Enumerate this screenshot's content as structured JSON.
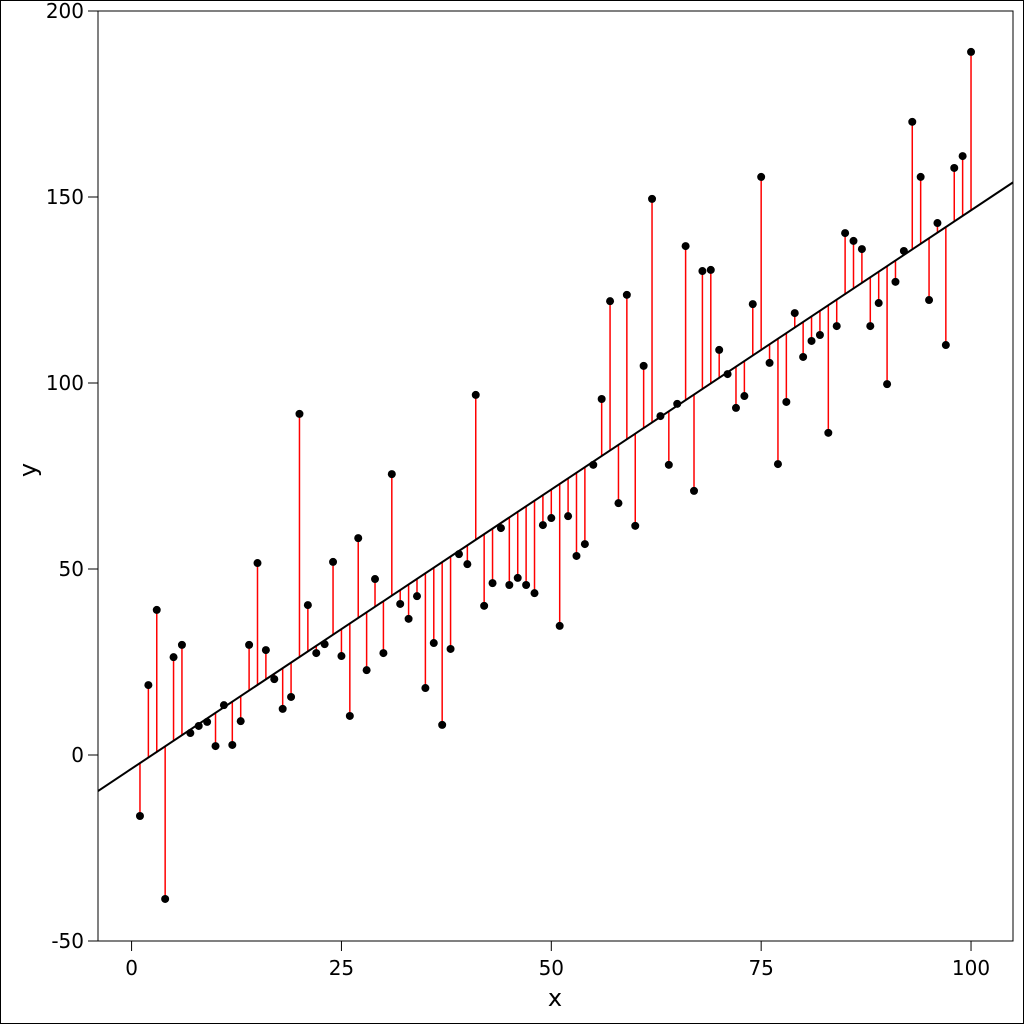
{
  "chart_data": {
    "type": "scatter",
    "x_label": "x",
    "y_label": "y",
    "x": [
      1,
      2,
      3,
      4,
      5,
      6,
      7,
      8,
      9,
      10,
      11,
      12,
      13,
      14,
      15,
      16,
      17,
      18,
      19,
      20,
      21,
      22,
      23,
      24,
      25,
      26,
      27,
      28,
      29,
      30,
      31,
      32,
      33,
      34,
      35,
      36,
      37,
      38,
      39,
      40,
      41,
      42,
      43,
      44,
      45,
      46,
      47,
      48,
      49,
      50,
      51,
      52,
      53,
      54,
      55,
      56,
      57,
      58,
      59,
      60,
      61,
      62,
      63,
      64,
      65,
      66,
      67,
      68,
      69,
      70,
      71,
      72,
      73,
      74,
      75,
      76,
      77,
      78,
      79,
      80,
      81,
      82,
      83,
      84,
      85,
      86,
      87,
      88,
      89,
      90,
      91,
      92,
      93,
      94,
      95,
      96,
      97,
      98,
      99,
      100
    ],
    "values": [
      -16.4,
      18.8,
      39.0,
      -38.7,
      26.3,
      29.6,
      5.9,
      7.8,
      8.9,
      2.4,
      13.4,
      2.7,
      9.1,
      29.6,
      51.6,
      28.2,
      20.4,
      12.4,
      15.6,
      91.7,
      40.3,
      27.4,
      29.8,
      51.9,
      26.6,
      10.5,
      58.3,
      22.8,
      47.3,
      27.4,
      75.5,
      40.6,
      36.6,
      42.7,
      18.0,
      30.1,
      8.1,
      28.5,
      54.0,
      51.3,
      96.8,
      40.1,
      46.2,
      61.0,
      45.7,
      47.6,
      45.7,
      43.5,
      61.8,
      63.7,
      34.7,
      64.2,
      53.5,
      56.7,
      78.0,
      95.7,
      122.0,
      67.7,
      123.7,
      61.6,
      104.6,
      149.5,
      91.1,
      78.0,
      94.4,
      136.8,
      71.0,
      130.1,
      130.4,
      108.9,
      102.4,
      93.3,
      96.5,
      121.2,
      155.4,
      105.4,
      78.2,
      94.9,
      118.8,
      107.0,
      111.3,
      112.9,
      86.6,
      115.3,
      140.3,
      138.2,
      136.0,
      115.3,
      121.5,
      99.7,
      127.2,
      135.5,
      170.2,
      155.4,
      122.3,
      143.0,
      110.2,
      157.8,
      161.0,
      189.0
    ],
    "point_color": "#000000",
    "residual_color": "#ff0000",
    "fit_color": "#000000",
    "xlim": [
      -4,
      105
    ],
    "ylim": [
      -50,
      200
    ],
    "xticks": [
      0,
      25,
      50,
      75,
      100
    ],
    "yticks": [
      -50,
      0,
      50,
      100,
      150,
      200
    ]
  }
}
